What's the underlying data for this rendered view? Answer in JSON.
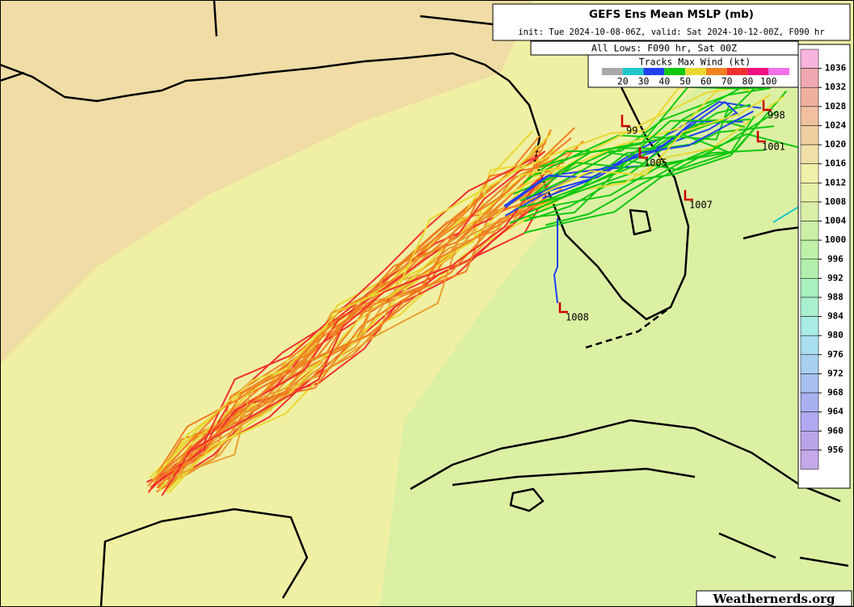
{
  "header": {
    "title": "GEFS Ens Mean MSLP (mb)",
    "subtitle": "init: Tue 2024-10-08-06Z, valid: Sat 2024-10-12-00Z, F090 hr",
    "lows_caption": "All Lows: F090 hr, Sat 00Z"
  },
  "wind_legend": {
    "title": "Tracks Max Wind (kt)",
    "labels": [
      "20",
      "30",
      "40",
      "50",
      "60",
      "70",
      "80",
      "100"
    ],
    "colors": [
      "#a8a8a8",
      "#20c8c8",
      "#2040f0",
      "#10c810",
      "#e8d830",
      "#f08020",
      "#f03030",
      "#f01080",
      "#f070e8"
    ]
  },
  "pressure_scale": {
    "labels": [
      "1036",
      "1032",
      "1028",
      "1024",
      "1020",
      "1016",
      "1012",
      "1008",
      "1004",
      "1000",
      "996",
      "992",
      "988",
      "984",
      "980",
      "976",
      "972",
      "968",
      "964",
      "960",
      "956"
    ],
    "colors": [
      "#f8b4dc",
      "#f0a8b0",
      "#f0b0a0",
      "#f0c0a0",
      "#f0d0a0",
      "#f0e0a8",
      "#f0f0a8",
      "#e6f0a8",
      "#daf0a8",
      "#ccf0a8",
      "#bef0a8",
      "#b0f0ac",
      "#a8f0be",
      "#a8f0d0",
      "#a8ece4",
      "#a8e0f0",
      "#a8d0f0",
      "#a8c0f0",
      "#a8b0f0",
      "#b0a8f0",
      "#b8a4e8",
      "#c4a8e8"
    ]
  },
  "lows": [
    {
      "label": "99"
    },
    {
      "label": "998"
    },
    {
      "label": "1001"
    },
    {
      "label": "1005"
    },
    {
      "label": "1007"
    },
    {
      "label": "1008"
    }
  ],
  "watermark": "Weathernerds.org"
}
